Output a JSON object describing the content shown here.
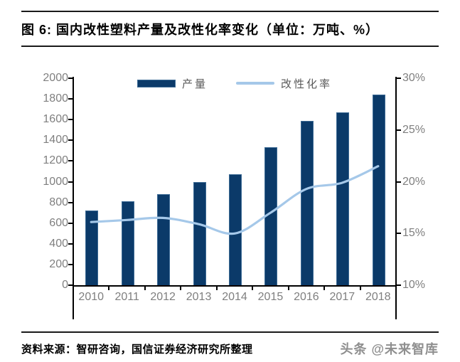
{
  "title": "图 6: 国内改性塑料产量及改性化率变化（单位：万吨、%）",
  "footer": {
    "source": "资料来源：智研咨询，国信证券经济研究所整理",
    "watermark": "头条 @未来智库"
  },
  "colors": {
    "bar": "#0b3a69",
    "bar_border": "#3d6b95",
    "line": "#a5c8e9",
    "axis": "#000000",
    "tick_label": "#7f7f7f",
    "legend_label": "#595959"
  },
  "chart_data": {
    "type": "bar",
    "subtype": "bar+line combo",
    "title": "国内改性塑料产量及改性化率变化",
    "units": "万吨、%",
    "categories": [
      "2010",
      "2011",
      "2012",
      "2013",
      "2014",
      "2015",
      "2016",
      "2017",
      "2018"
    ],
    "series": [
      {
        "name": "产量",
        "type": "bar",
        "axis": "left",
        "values": [
          720,
          810,
          880,
          1000,
          1070,
          1330,
          1590,
          1670,
          1845
        ]
      },
      {
        "name": "改性化率",
        "type": "line",
        "axis": "right",
        "values": [
          16.1,
          16.3,
          16.5,
          15.9,
          15.0,
          17.0,
          19.3,
          19.9,
          21.5
        ]
      }
    ],
    "left_axis": {
      "min": 0,
      "max": 2000,
      "step": 200,
      "tick_labels": [
        "0",
        "200",
        "400",
        "600",
        "800",
        "1000",
        "1200",
        "1400",
        "1600",
        "1800",
        "2000"
      ]
    },
    "right_axis": {
      "min": 10,
      "max": 30,
      "step": 5,
      "tick_labels": [
        "10%",
        "15%",
        "20%",
        "25%",
        "30%"
      ]
    },
    "legend_position": "top-center",
    "grid": false
  }
}
